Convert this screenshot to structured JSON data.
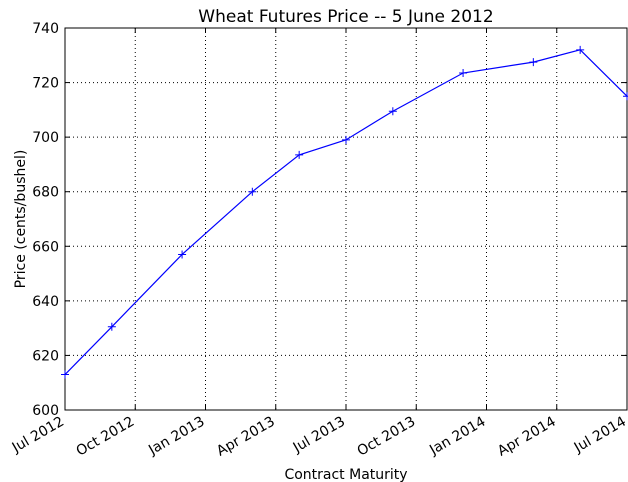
{
  "chart_data": {
    "type": "line",
    "title": "Wheat Futures Price -- 5 June 2012",
    "x_label": "Contract Maturity",
    "y_label": "Price (cents/bushel)",
    "x": [
      "2012-07",
      "2012-09",
      "2012-12",
      "2013-03",
      "2013-05",
      "2013-07",
      "2013-09",
      "2013-12",
      "2014-03",
      "2014-05",
      "2014-07"
    ],
    "values": [
      613,
      630.5,
      657,
      680,
      693.5,
      699,
      709.5,
      723.5,
      727.5,
      732,
      715
    ],
    "color": "#0000ff",
    "xlim": [
      "2012-07",
      "2014-07"
    ],
    "xticks": [
      {
        "value": "2012-07",
        "label": "Jul 2012"
      },
      {
        "value": "2012-10",
        "label": "Oct 2012"
      },
      {
        "value": "2013-01",
        "label": "Jan 2013"
      },
      {
        "value": "2013-04",
        "label": "Apr 2013"
      },
      {
        "value": "2013-07",
        "label": "Jul 2013"
      },
      {
        "value": "2013-10",
        "label": "Oct 2013"
      },
      {
        "value": "2014-01",
        "label": "Jan 2014"
      },
      {
        "value": "2014-04",
        "label": "Apr 2014"
      },
      {
        "value": "2014-07",
        "label": "Jul 2014"
      }
    ],
    "ylim": [
      600,
      740
    ],
    "yticks": [
      600,
      620,
      640,
      660,
      680,
      700,
      720,
      740
    ],
    "grid": true
  }
}
